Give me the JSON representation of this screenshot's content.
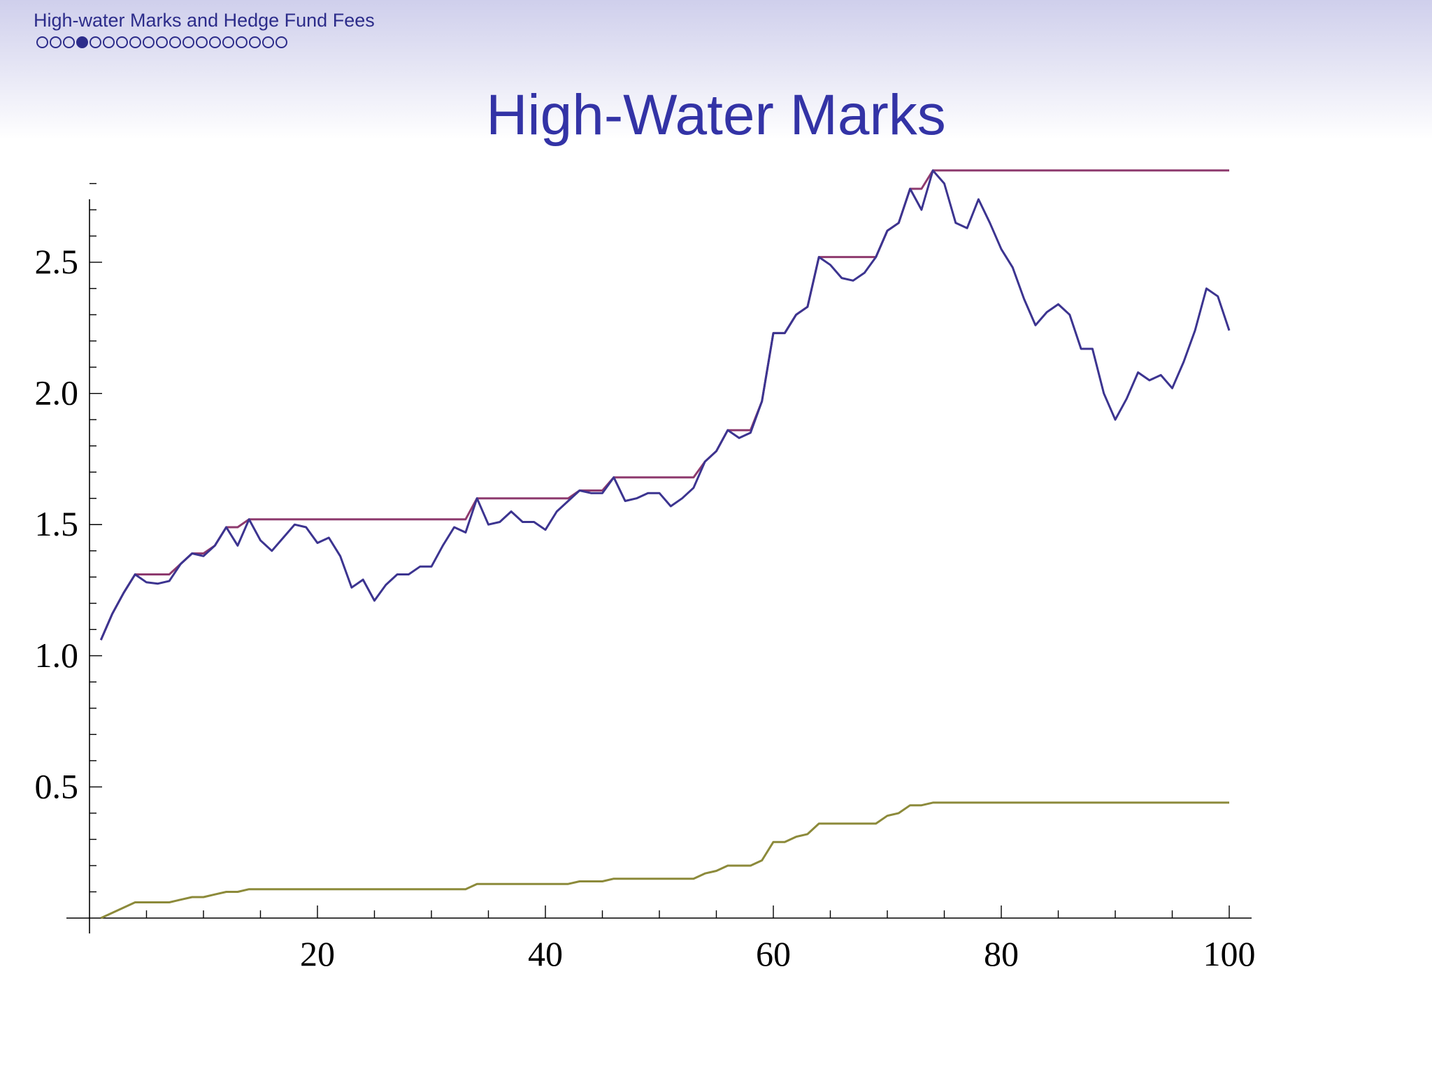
{
  "header": {
    "deck_title": "High-water Marks and Hedge Fund Fees",
    "nav_dot_count": 19,
    "nav_active_index": 3
  },
  "slide": {
    "title": "High-Water Marks"
  },
  "colors": {
    "title": "#3333a6",
    "header_text": "#2c2c8a",
    "value_line": "#3c3490",
    "high_water_line": "#8e3a6e",
    "fee_line": "#8c8a3a"
  },
  "chart_data": {
    "type": "line",
    "title": "",
    "xlabel": "",
    "ylabel": "",
    "xlim": [
      0,
      102
    ],
    "ylim": [
      0,
      2.9
    ],
    "x_ticks": [
      20,
      40,
      60,
      80,
      100
    ],
    "y_ticks": [
      0.5,
      1.0,
      1.5,
      2.0,
      2.5
    ],
    "x_tick_labels": [
      "20",
      "40",
      "60",
      "80",
      "100"
    ],
    "y_tick_labels": [
      "0.5",
      "1.0",
      "1.5",
      "2.0",
      "2.5"
    ],
    "grid": false,
    "x": [
      1,
      2,
      3,
      4,
      5,
      6,
      7,
      8,
      9,
      10,
      11,
      12,
      13,
      14,
      15,
      16,
      17,
      18,
      19,
      20,
      21,
      22,
      23,
      24,
      25,
      26,
      27,
      28,
      29,
      30,
      31,
      32,
      33,
      34,
      35,
      36,
      37,
      38,
      39,
      40,
      41,
      42,
      43,
      44,
      45,
      46,
      47,
      48,
      49,
      50,
      51,
      52,
      53,
      54,
      55,
      56,
      57,
      58,
      59,
      60,
      61,
      62,
      63,
      64,
      65,
      66,
      67,
      68,
      69,
      70,
      71,
      72,
      73,
      74,
      75,
      76,
      77,
      78,
      79,
      80,
      81,
      82,
      83,
      84,
      85,
      86,
      87,
      88,
      89,
      90,
      91,
      92,
      93,
      94,
      95,
      96,
      97,
      98,
      99,
      100
    ],
    "series": [
      {
        "values": [
          1.06,
          1.16,
          1.24,
          1.31,
          1.28,
          1.275,
          1.285,
          1.35,
          1.39,
          1.38,
          1.42,
          1.49,
          1.42,
          1.52,
          1.44,
          1.4,
          1.45,
          1.5,
          1.49,
          1.43,
          1.45,
          1.38,
          1.26,
          1.29,
          1.21,
          1.27,
          1.31,
          1.31,
          1.34,
          1.34,
          1.42,
          1.49,
          1.47,
          1.6,
          1.5,
          1.51,
          1.55,
          1.51,
          1.51,
          1.48,
          1.55,
          1.59,
          1.63,
          1.62,
          1.62,
          1.68,
          1.59,
          1.6,
          1.62,
          1.62,
          1.57,
          1.6,
          1.64,
          1.74,
          1.78,
          1.86,
          1.83,
          1.85,
          1.97,
          2.23,
          2.23,
          2.3,
          2.33,
          2.52,
          2.49,
          2.44,
          2.43,
          2.46,
          2.52,
          2.62,
          2.65,
          2.78,
          2.7,
          2.85,
          2.8,
          2.65,
          2.63,
          2.74,
          2.65,
          2.55,
          2.48,
          2.36,
          2.26,
          2.31,
          2.34,
          2.3,
          2.17,
          2.17,
          2.0,
          1.9,
          1.98,
          2.08,
          2.05,
          2.07,
          2.02,
          2.12,
          2.24,
          2.4,
          2.37,
          2.24
        ]
      },
      {
        "values": [
          1.06,
          1.16,
          1.24,
          1.31,
          1.31,
          1.31,
          1.31,
          1.35,
          1.39,
          1.39,
          1.42,
          1.49,
          1.49,
          1.52,
          1.52,
          1.52,
          1.52,
          1.52,
          1.52,
          1.52,
          1.52,
          1.52,
          1.52,
          1.52,
          1.52,
          1.52,
          1.52,
          1.52,
          1.52,
          1.52,
          1.52,
          1.52,
          1.52,
          1.6,
          1.6,
          1.6,
          1.6,
          1.6,
          1.6,
          1.6,
          1.6,
          1.6,
          1.63,
          1.63,
          1.63,
          1.68,
          1.68,
          1.68,
          1.68,
          1.68,
          1.68,
          1.68,
          1.68,
          1.74,
          1.78,
          1.86,
          1.86,
          1.86,
          1.97,
          2.23,
          2.23,
          2.3,
          2.33,
          2.52,
          2.52,
          2.52,
          2.52,
          2.52,
          2.52,
          2.62,
          2.65,
          2.78,
          2.78,
          2.85,
          2.85,
          2.85,
          2.85,
          2.85,
          2.85,
          2.85,
          2.85,
          2.85,
          2.85,
          2.85,
          2.85,
          2.85,
          2.85,
          2.85,
          2.85,
          2.85,
          2.85,
          2.85,
          2.85,
          2.85,
          2.85,
          2.85,
          2.85,
          2.85,
          2.85,
          2.85
        ]
      },
      {
        "values": [
          0.0,
          0.02,
          0.04,
          0.06,
          0.06,
          0.06,
          0.06,
          0.07,
          0.08,
          0.08,
          0.09,
          0.1,
          0.1,
          0.11,
          0.11,
          0.11,
          0.11,
          0.11,
          0.11,
          0.11,
          0.11,
          0.11,
          0.11,
          0.11,
          0.11,
          0.11,
          0.11,
          0.11,
          0.11,
          0.11,
          0.11,
          0.11,
          0.11,
          0.13,
          0.13,
          0.13,
          0.13,
          0.13,
          0.13,
          0.13,
          0.13,
          0.13,
          0.14,
          0.14,
          0.14,
          0.15,
          0.15,
          0.15,
          0.15,
          0.15,
          0.15,
          0.15,
          0.15,
          0.17,
          0.18,
          0.2,
          0.2,
          0.2,
          0.22,
          0.29,
          0.29,
          0.31,
          0.32,
          0.36,
          0.36,
          0.36,
          0.36,
          0.36,
          0.36,
          0.39,
          0.4,
          0.43,
          0.43,
          0.44,
          0.44,
          0.44,
          0.44,
          0.44,
          0.44,
          0.44,
          0.44,
          0.44,
          0.44,
          0.44,
          0.44,
          0.44,
          0.44,
          0.44,
          0.44,
          0.44,
          0.44,
          0.44,
          0.44,
          0.44,
          0.44,
          0.44,
          0.44,
          0.44,
          0.44,
          0.44
        ]
      }
    ]
  }
}
